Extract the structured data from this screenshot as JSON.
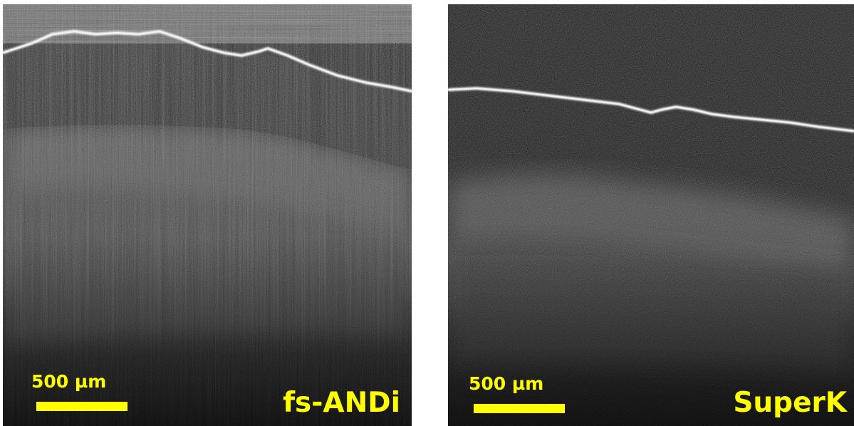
{
  "figure": {
    "panels": [
      {
        "source_label": "fs-ANDi",
        "scale_label": "500 µm"
      },
      {
        "source_label": "SuperK",
        "scale_label": "500 µm"
      }
    ]
  },
  "colors": {
    "annotation": "#ffff00",
    "background": "#101010",
    "surface_line": "#f2f2f2"
  }
}
